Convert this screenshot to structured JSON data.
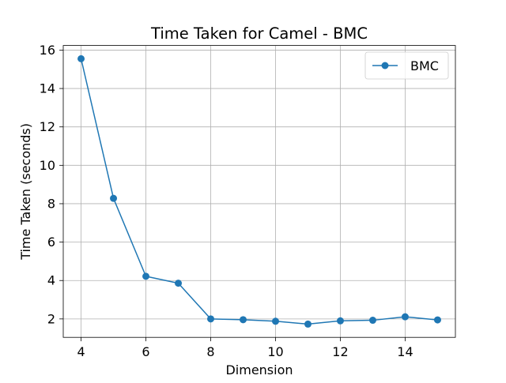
{
  "chart_data": {
    "type": "line",
    "title": "Time Taken for Camel - BMC",
    "xlabel": "Dimension",
    "ylabel": "Time Taken (seconds)",
    "x": [
      4,
      5,
      6,
      7,
      8,
      9,
      10,
      11,
      12,
      13,
      14,
      15
    ],
    "series": [
      {
        "name": "BMC",
        "color": "#1f77b4",
        "marker": "circle",
        "values": [
          15.55,
          8.28,
          4.22,
          3.86,
          2.0,
          1.96,
          1.88,
          1.73,
          1.9,
          1.93,
          2.11,
          1.95
        ]
      }
    ],
    "xlim": [
      3.45,
      15.55
    ],
    "ylim": [
      1.04,
      16.24
    ],
    "xticks": [
      4,
      6,
      8,
      10,
      12,
      14
    ],
    "yticks": [
      2,
      4,
      6,
      8,
      10,
      12,
      14,
      16
    ],
    "grid": true,
    "legend_position": "top-right"
  }
}
